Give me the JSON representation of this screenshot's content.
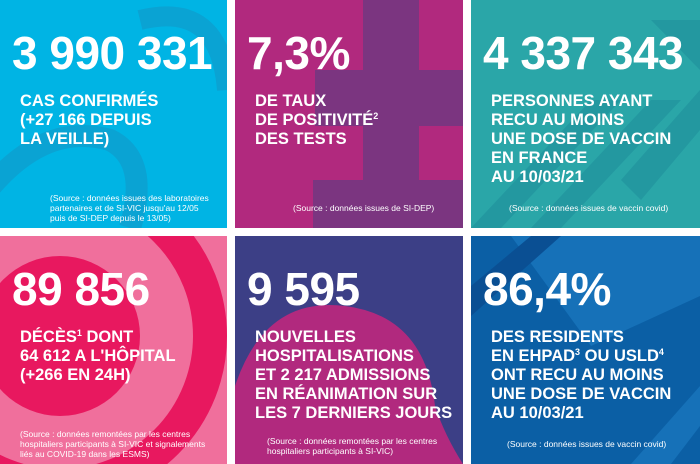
{
  "colors": {
    "cyan": "#00b4e4",
    "magenta": "#b1297e",
    "teal": "#2aa6a8",
    "pink": "#f06f9c",
    "navy": "#3c3f86",
    "blue": "#0b5fa5"
  },
  "tiles": [
    {
      "value": "3 990 331",
      "lines": [
        "CAS CONFIRMÉS",
        "(+27 166 DEPUIS",
        "LA VEILLE)"
      ],
      "source": [
        "(Source : données issues des laboratoires",
        "partenaires et de SI-VIC jusqu'au 12/05",
        "puis de SI-DEP depuis le 13/05)"
      ]
    },
    {
      "value": "7,3%",
      "lines": [
        "DE TAUX",
        "DE POSITIVITÉ",
        "DES TESTS"
      ],
      "sup": "2",
      "source": [
        "(Source : données issues de SI-DEP)"
      ]
    },
    {
      "value": "4 337 343",
      "lines": [
        "PERSONNES AYANT",
        "RECU AU MOINS",
        "UNE DOSE DE VACCIN",
        "EN FRANCE",
        "AU 10/03/21"
      ],
      "source": [
        "(Source : données issues de vaccin covid)"
      ]
    },
    {
      "value": "89 856",
      "lines": [
        "DÉCÈS",
        " DONT",
        "64 612 A L'HÔPITAL",
        "(+266 EN 24H)"
      ],
      "sup": "1",
      "source": [
        "(Source : données remontées par les centres",
        "hospitaliers participants à SI-VIC et signalements",
        "liés au COVID-19 dans les ESMS)"
      ]
    },
    {
      "value": "9 595",
      "lines": [
        "NOUVELLES",
        "HOSPITALISATIONS",
        "ET 2 217 ADMISSIONS",
        "EN RÉANIMATION SUR",
        "LES 7 DERNIERS JOURS"
      ],
      "source": [
        "(Source : données remontées par les centres",
        "hospitaliers participants à SI-VIC)"
      ]
    },
    {
      "value": "86,4%",
      "lines": [
        "DES RESIDENTS",
        "EN EHPAD",
        " OU USLD",
        "ONT RECU AU MOINS",
        "UNE DOSE DE VACCIN",
        "AU 10/03/21"
      ],
      "sup": "3",
      "sup2": "4",
      "source": [
        "(Source : données issues de vaccin covid)"
      ]
    }
  ]
}
